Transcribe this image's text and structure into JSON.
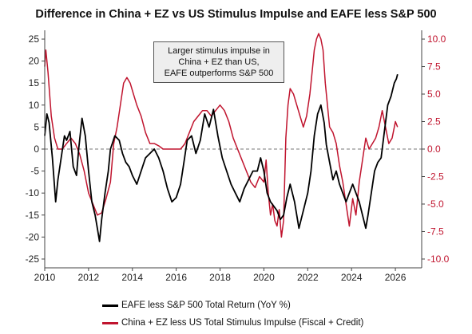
{
  "chart_data": {
    "type": "line",
    "title": "Difference in China + EZ vs US Stimulus Impulse and EAFE less S&P 500",
    "annotation": [
      "Larger stimulus impulse in",
      "China + EZ than US,",
      "EAFE outperforms S&P 500"
    ],
    "x_ticks": [
      "2010",
      "2012",
      "2014",
      "2016",
      "2018",
      "2020",
      "2022",
      "2024",
      "2026"
    ],
    "xlim": [
      2010,
      2027.2
    ],
    "left_axis": {
      "ylim": [
        -27,
        27
      ],
      "ticks": [
        "25",
        "20",
        "15",
        "10",
        "5",
        "0",
        "-5",
        "-10",
        "-15",
        "-20",
        "-25"
      ]
    },
    "right_axis": {
      "ylim": [
        -10.8,
        10.8
      ],
      "ticks": [
        "10.0",
        "7.5",
        "5.0",
        "2.5",
        "0.0",
        "-2.5",
        "-5.0",
        "-7.5",
        "-10.0"
      ]
    },
    "zero_line": "dashed",
    "colors": {
      "series1": "#000000",
      "series2": "#c0142e",
      "right_axis": "#c0142e"
    },
    "series": [
      {
        "name": "EAFE less S&P 500 Total Return (YoY %)",
        "axis": "left",
        "x": [
          2010.0,
          2010.1,
          2010.2,
          2010.35,
          2010.5,
          2010.6,
          2010.75,
          2010.9,
          2011.0,
          2011.15,
          2011.3,
          2011.45,
          2011.55,
          2011.7,
          2011.85,
          2012.0,
          2012.15,
          2012.3,
          2012.4,
          2012.5,
          2012.6,
          2012.75,
          2012.9,
          2013.0,
          2013.2,
          2013.4,
          2013.55,
          2013.7,
          2013.85,
          2014.0,
          2014.2,
          2014.4,
          2014.6,
          2014.8,
          2015.0,
          2015.2,
          2015.4,
          2015.6,
          2015.8,
          2016.0,
          2016.2,
          2016.35,
          2016.5,
          2016.7,
          2016.9,
          2017.1,
          2017.3,
          2017.5,
          2017.7,
          2017.9,
          2018.1,
          2018.3,
          2018.5,
          2018.7,
          2018.9,
          2019.1,
          2019.3,
          2019.5,
          2019.7,
          2019.85,
          2020.0,
          2020.15,
          2020.3,
          2020.45,
          2020.6,
          2020.75,
          2020.9,
          2021.05,
          2021.2,
          2021.4,
          2021.6,
          2021.8,
          2022.0,
          2022.15,
          2022.3,
          2022.45,
          2022.6,
          2022.75,
          2022.85,
          2023.0,
          2023.15,
          2023.3,
          2023.45,
          2023.6,
          2023.75,
          2023.9,
          2024.05,
          2024.2,
          2024.35,
          2024.5,
          2024.65,
          2024.75,
          2024.9,
          2025.05,
          2025.2,
          2025.35,
          2025.5,
          2025.65,
          2025.8,
          2025.95,
          2026.05,
          2026.1
        ],
        "values": [
          3,
          8,
          6,
          -2,
          -12,
          -7,
          -2,
          3,
          2,
          4,
          -4,
          -6,
          0,
          7,
          3,
          -5,
          -12,
          -15,
          -18,
          -21,
          -16,
          -10,
          -5,
          0,
          3,
          2,
          -1,
          -3,
          -4,
          -6,
          -8,
          -5,
          -2,
          -1,
          0,
          -2,
          -5,
          -9,
          -12,
          -11,
          -8,
          -3,
          2,
          3,
          -1,
          2,
          8,
          5,
          9,
          3,
          -2,
          -5,
          -8,
          -10,
          -12,
          -9,
          -7,
          -5,
          -5,
          -2,
          -5,
          -10,
          -12,
          -13,
          -14,
          -16,
          -15,
          -11,
          -8,
          -12,
          -18,
          -14,
          -10,
          -5,
          3,
          8,
          10,
          6,
          1,
          -3,
          -7,
          -5,
          -8,
          -10,
          -12,
          -10,
          -8,
          -10,
          -12,
          -15,
          -18,
          -15,
          -10,
          -5,
          -3,
          -2,
          4,
          10,
          12,
          15,
          16,
          17
        ]
      },
      {
        "name": "China + EZ less US Total Stimulus Impulse (Fiscal + Credit)",
        "axis": "right",
        "x": [
          2010.0,
          2010.05,
          2010.15,
          2010.3,
          2010.45,
          2010.6,
          2010.8,
          2011.0,
          2011.2,
          2011.4,
          2011.6,
          2011.8,
          2012.0,
          2012.2,
          2012.4,
          2012.6,
          2012.8,
          2013.0,
          2013.15,
          2013.3,
          2013.45,
          2013.6,
          2013.75,
          2013.9,
          2014.05,
          2014.2,
          2014.4,
          2014.6,
          2014.8,
          2015.0,
          2015.2,
          2015.4,
          2015.6,
          2015.8,
          2016.0,
          2016.2,
          2016.4,
          2016.6,
          2016.8,
          2017.0,
          2017.2,
          2017.4,
          2017.6,
          2017.8,
          2018.0,
          2018.2,
          2018.4,
          2018.6,
          2018.8,
          2019.0,
          2019.2,
          2019.4,
          2019.6,
          2019.8,
          2020.0,
          2020.1,
          2020.2,
          2020.3,
          2020.4,
          2020.5,
          2020.6,
          2020.7,
          2020.8,
          2020.9,
          2021.0,
          2021.1,
          2021.2,
          2021.35,
          2021.5,
          2021.65,
          2021.8,
          2021.95,
          2022.1,
          2022.2,
          2022.3,
          2022.4,
          2022.5,
          2022.6,
          2022.7,
          2022.8,
          2022.9,
          2023.0,
          2023.15,
          2023.3,
          2023.45,
          2023.6,
          2023.75,
          2023.9,
          2024.05,
          2024.2,
          2024.35,
          2024.5,
          2024.65,
          2024.8,
          2024.95,
          2025.1,
          2025.25,
          2025.4,
          2025.55,
          2025.7,
          2025.85,
          2026.0,
          2026.1
        ],
        "values": [
          7.5,
          9,
          7,
          3,
          1,
          0,
          0,
          0.5,
          1,
          0.5,
          -0.5,
          -2,
          -4,
          -5,
          -6,
          -5.8,
          -4.5,
          -3,
          0.5,
          2,
          4,
          6,
          6.5,
          6,
          5,
          4,
          3,
          1.5,
          0.5,
          0.5,
          0.3,
          0,
          0,
          0,
          0,
          0,
          0.5,
          1.5,
          2.5,
          3,
          3.5,
          3.5,
          3,
          3.5,
          4,
          3.5,
          2.5,
          1,
          0,
          -1,
          -2,
          -3,
          -3.5,
          -2.5,
          -3,
          -1,
          -4,
          -6,
          -5,
          -6.5,
          -7,
          -5.5,
          -8,
          -6.5,
          1,
          4,
          5.5,
          5,
          4,
          3,
          2,
          3,
          5,
          7,
          9,
          10,
          10.5,
          10,
          9,
          6,
          4,
          2,
          1.5,
          0.5,
          -1.5,
          -3,
          -5,
          -7,
          -4.5,
          -6,
          -3,
          -1,
          1,
          0,
          0.5,
          1,
          2,
          3.5,
          2,
          0.5,
          1,
          2.5,
          2
        ]
      }
    ]
  }
}
